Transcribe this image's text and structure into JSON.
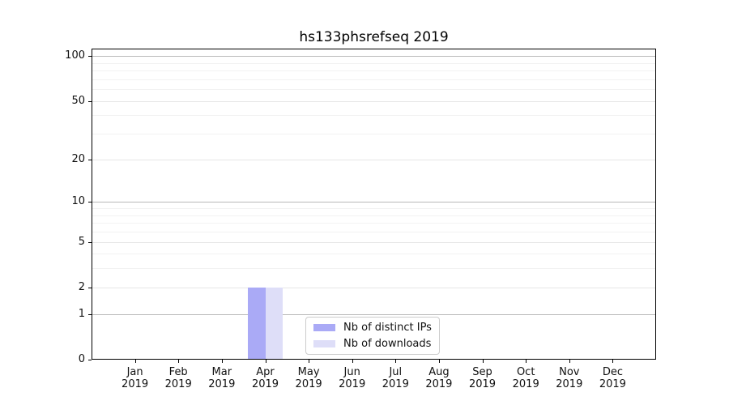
{
  "title": "hs133phsrefseq 2019",
  "chart_data": {
    "type": "bar",
    "title": "hs133phsrefseq 2019",
    "x_categories": [
      "Jan",
      "Feb",
      "Mar",
      "Apr",
      "May",
      "Jun",
      "Jul",
      "Aug",
      "Sep",
      "Oct",
      "Nov",
      "Dec"
    ],
    "x_year": "2019",
    "series": [
      {
        "name": "Nb of distinct IPs",
        "color": "#aaaaf6",
        "values": [
          0,
          0,
          0,
          2,
          0,
          0,
          0,
          0,
          0,
          0,
          0,
          0
        ]
      },
      {
        "name": "Nb of downloads",
        "color": "#dedef8",
        "values": [
          0,
          0,
          0,
          2,
          0,
          0,
          0,
          0,
          0,
          0,
          0,
          0
        ]
      }
    ],
    "y_axis": {
      "scale": "log10(1+x)",
      "tick_labels": [
        0,
        1,
        2,
        5,
        10,
        20,
        50,
        100
      ],
      "major_gridlines": [
        1,
        10,
        100
      ],
      "mid_gridlines": [
        2,
        5,
        20,
        50
      ],
      "minor_gridlines": [
        3,
        4,
        6,
        7,
        8,
        9,
        30,
        40,
        60,
        70,
        80,
        90
      ],
      "range": [
        0,
        112
      ]
    },
    "legend": {
      "position": "lower center"
    },
    "grid": "horizontal",
    "colors": {
      "spine": "#000000",
      "major_grid": "#b9b9b9",
      "mid_grid": "#e6e6e6",
      "minor_grid": "#f2f2f2"
    }
  }
}
